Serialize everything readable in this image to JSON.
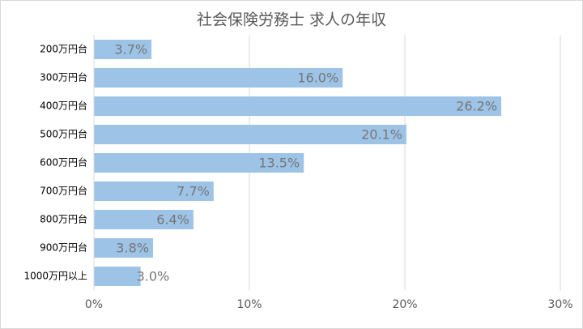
{
  "chart_data": {
    "type": "bar",
    "orientation": "horizontal",
    "title": "社会保険労務士 求人の年収",
    "categories": [
      "200万円台",
      "300万円台",
      "400万円台",
      "500万円台",
      "600万円台",
      "700万円台",
      "800万円台",
      "900万円台",
      "1000万円以上"
    ],
    "values": [
      3.7,
      16.0,
      26.2,
      20.1,
      13.5,
      7.7,
      6.4,
      3.8,
      3.0
    ],
    "value_labels": [
      "3.7%",
      "16.0%",
      "26.2%",
      "20.1%",
      "13.5%",
      "7.7%",
      "6.4%",
      "3.8%",
      "3.0%"
    ],
    "color": "#9dc3e6",
    "xlim": [
      0,
      30
    ],
    "xticks": [
      {
        "value": 0,
        "label": "0%"
      },
      {
        "value": 10,
        "label": "10%"
      },
      {
        "value": 20,
        "label": "20%"
      },
      {
        "value": 30,
        "label": "30%"
      }
    ],
    "grid": true
  }
}
